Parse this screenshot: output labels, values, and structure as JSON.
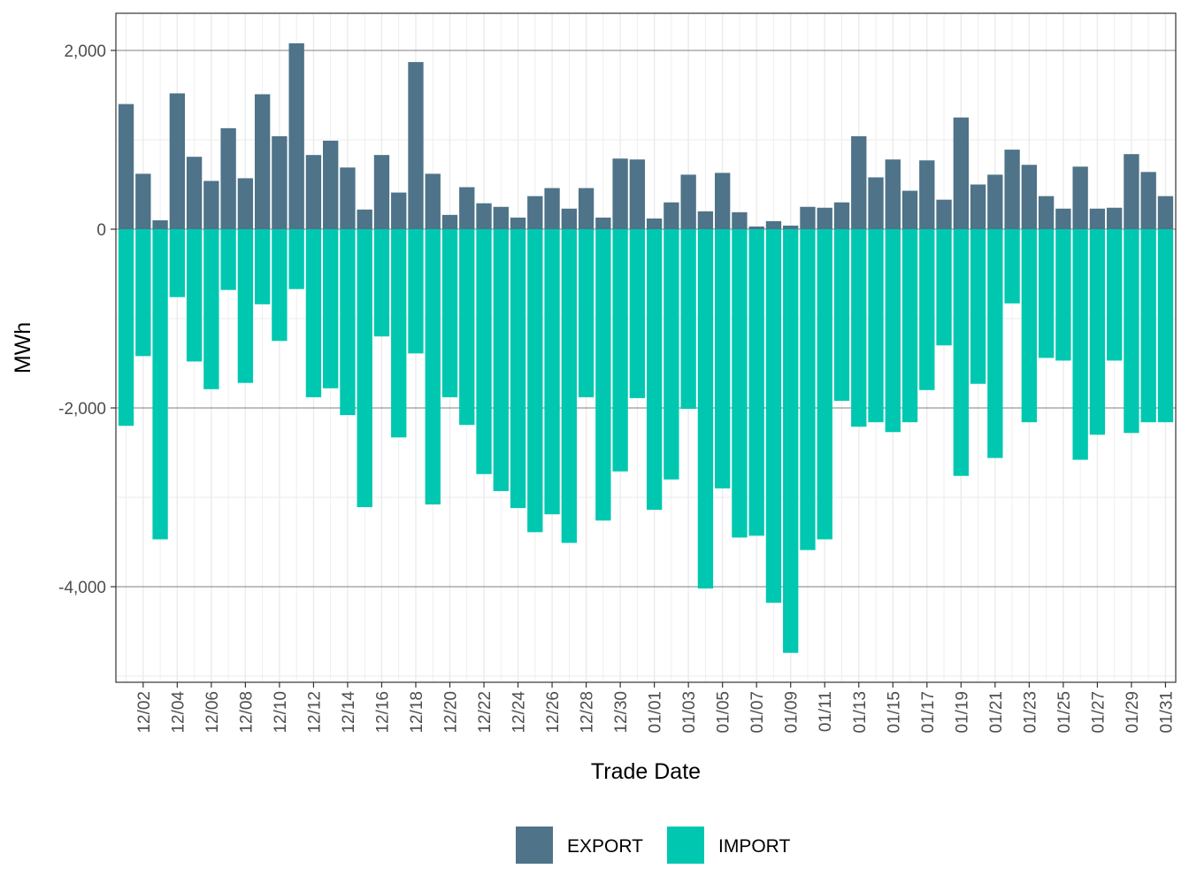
{
  "chart_data": {
    "type": "bar",
    "stacked": true,
    "title": "",
    "xlabel": "Trade Date",
    "ylabel": "MWh",
    "ylim": [
      -5100,
      2400
    ],
    "yticks": [
      2000,
      0,
      -2000,
      -4000
    ],
    "ytick_labels": [
      "2,000",
      "0",
      "-2,000",
      "-4,000"
    ],
    "grid": true,
    "legend_position": "bottom",
    "categories": [
      "12/01",
      "12/02",
      "12/03",
      "12/04",
      "12/05",
      "12/06",
      "12/07",
      "12/08",
      "12/09",
      "12/10",
      "12/11",
      "12/12",
      "12/13",
      "12/14",
      "12/15",
      "12/16",
      "12/17",
      "12/18",
      "12/19",
      "12/20",
      "12/21",
      "12/22",
      "12/23",
      "12/24",
      "12/25",
      "12/26",
      "12/27",
      "12/28",
      "12/29",
      "12/30",
      "12/31",
      "01/01",
      "01/02",
      "01/03",
      "01/04",
      "01/05",
      "01/06",
      "01/07",
      "01/08",
      "01/09",
      "01/10",
      "01/11",
      "01/12",
      "01/13",
      "01/14",
      "01/15",
      "01/16",
      "01/17",
      "01/18",
      "01/19",
      "01/20",
      "01/21",
      "01/22",
      "01/23",
      "01/24",
      "01/25",
      "01/26",
      "01/27",
      "01/28",
      "01/29",
      "01/30",
      "01/31"
    ],
    "xtick_labels": [
      "12/02",
      "12/04",
      "12/06",
      "12/08",
      "12/10",
      "12/12",
      "12/14",
      "12/16",
      "12/18",
      "12/20",
      "12/22",
      "12/24",
      "12/26",
      "12/28",
      "12/30",
      "01/01",
      "01/03",
      "01/05",
      "01/07",
      "01/09",
      "01/11",
      "01/13",
      "01/15",
      "01/17",
      "01/19",
      "01/21",
      "01/23",
      "01/25",
      "01/27",
      "01/29",
      "01/31"
    ],
    "series": [
      {
        "name": "EXPORT",
        "color": "#4f7388",
        "values": [
          1400,
          620,
          100,
          1520,
          810,
          540,
          1130,
          570,
          1510,
          1040,
          2080,
          830,
          990,
          690,
          220,
          830,
          410,
          1870,
          620,
          160,
          470,
          290,
          250,
          130,
          370,
          460,
          230,
          460,
          130,
          790,
          780,
          120,
          300,
          610,
          200,
          630,
          190,
          30,
          90,
          40,
          250,
          240,
          300,
          1040,
          580,
          780,
          430,
          770,
          330,
          1250,
          500,
          610,
          890,
          720,
          370,
          230,
          700,
          230,
          240,
          840,
          640,
          370
        ]
      },
      {
        "name": "IMPORT",
        "color": "#00c8b0",
        "values": [
          -2200,
          -1420,
          -3470,
          -760,
          -1480,
          -1790,
          -680,
          -1720,
          -840,
          -1250,
          -670,
          -1880,
          -1780,
          -2080,
          -3110,
          -1200,
          -2330,
          -1390,
          -3080,
          -1880,
          -2190,
          -2740,
          -2930,
          -3120,
          -3390,
          -3190,
          -3510,
          -1880,
          -3260,
          -2710,
          -1890,
          -3140,
          -2800,
          -2010,
          -4020,
          -2900,
          -3450,
          -3430,
          -4180,
          -4740,
          -3590,
          -3470,
          -1920,
          -2210,
          -2160,
          -2270,
          -2160,
          -1800,
          -1300,
          -2760,
          -1730,
          -2560,
          -830,
          -2160,
          -1440,
          -1470,
          -2580,
          -2300,
          -1470,
          -2280,
          -2160,
          -2160
        ]
      }
    ]
  }
}
